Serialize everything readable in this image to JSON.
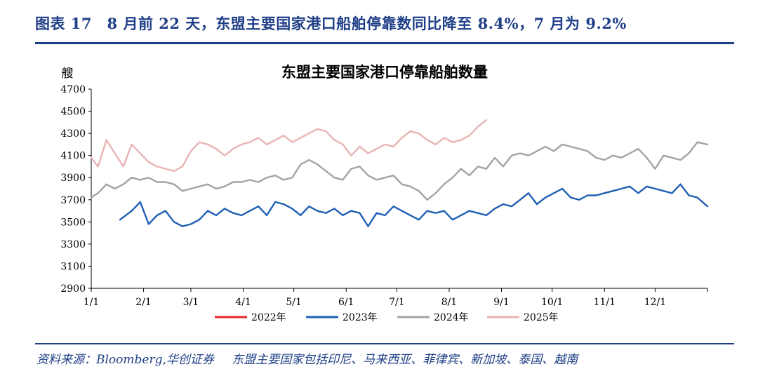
{
  "header": {
    "figure_title": "图表 17　8 月前 22 天，东盟主要国家港口船舶停靠数同比降至 8.4%，7 月为 9.2%"
  },
  "footer": {
    "source": "资料来源：Bloomberg,华创证券",
    "note": "东盟主要国家包括印尼、马来西亚、菲律宾、新加坡、泰国、越南"
  },
  "chart_data": {
    "type": "line",
    "title": "东盟主要国家港口停靠船舶数量",
    "ylabel": "艘",
    "xlabel": "",
    "ylim": [
      2900,
      4700
    ],
    "yticks": [
      "2900",
      "3100",
      "3300",
      "3500",
      "3700",
      "3900",
      "4100",
      "4300",
      "4500",
      "4700"
    ],
    "xlim_day": [
      1,
      366
    ],
    "xticks": [
      {
        "label": "1/1",
        "day": 1
      },
      {
        "label": "2/1",
        "day": 32
      },
      {
        "label": "3/1",
        "day": 60
      },
      {
        "label": "4/1",
        "day": 91
      },
      {
        "label": "5/1",
        "day": 121
      },
      {
        "label": "6/1",
        "day": 152
      },
      {
        "label": "7/1",
        "day": 182
      },
      {
        "label": "8/1",
        "day": 213
      },
      {
        "label": "9/1",
        "day": 244
      },
      {
        "label": "10/1",
        "day": 274
      },
      {
        "label": "11/1",
        "day": 305
      },
      {
        "label": "12/1",
        "day": 335
      }
    ],
    "grid": false,
    "legend_position": "bottom",
    "series": [
      {
        "name": "2022年",
        "color": "#e8262a",
        "x": [],
        "y": []
      },
      {
        "name": "2023年",
        "color": "#1f5fb4",
        "x": [
          18,
          25,
          30,
          35,
          40,
          45,
          50,
          55,
          60,
          65,
          70,
          75,
          80,
          85,
          90,
          95,
          100,
          105,
          110,
          115,
          120,
          125,
          130,
          135,
          140,
          145,
          150,
          155,
          160,
          165,
          170,
          175,
          180,
          185,
          190,
          195,
          200,
          205,
          210,
          215,
          220,
          225,
          230,
          235,
          240,
          245,
          250,
          255,
          260,
          265,
          270,
          275,
          280,
          285,
          290,
          295,
          300,
          305,
          310,
          315,
          320,
          325,
          330,
          335,
          340,
          345,
          350,
          355,
          360,
          366
        ],
        "y": [
          3520,
          3600,
          3680,
          3480,
          3560,
          3600,
          3500,
          3460,
          3480,
          3520,
          3600,
          3560,
          3620,
          3580,
          3560,
          3600,
          3640,
          3560,
          3680,
          3660,
          3620,
          3560,
          3640,
          3600,
          3580,
          3620,
          3560,
          3600,
          3580,
          3460,
          3580,
          3560,
          3640,
          3600,
          3560,
          3520,
          3600,
          3580,
          3600,
          3520,
          3560,
          3600,
          3580,
          3560,
          3620,
          3660,
          3640,
          3700,
          3760,
          3660,
          3720,
          3760,
          3800,
          3720,
          3700,
          3740,
          3740,
          3760,
          3780,
          3800,
          3820,
          3760,
          3820,
          3800,
          3780,
          3760,
          3840,
          3740,
          3720,
          3640
        ]
      },
      {
        "name": "2024年",
        "color": "#a3a3a3",
        "x": [
          1,
          5,
          10,
          15,
          20,
          25,
          30,
          35,
          40,
          45,
          50,
          55,
          60,
          65,
          70,
          75,
          80,
          85,
          90,
          95,
          100,
          105,
          110,
          115,
          120,
          125,
          130,
          135,
          140,
          145,
          150,
          155,
          160,
          165,
          170,
          175,
          180,
          185,
          190,
          195,
          200,
          205,
          210,
          215,
          220,
          225,
          230,
          235,
          240,
          245,
          250,
          255,
          260,
          265,
          270,
          275,
          280,
          285,
          290,
          295,
          300,
          305,
          310,
          315,
          320,
          325,
          330,
          335,
          340,
          345,
          350,
          355,
          360,
          366
        ],
        "y": [
          3720,
          3760,
          3840,
          3800,
          3840,
          3900,
          3880,
          3900,
          3860,
          3860,
          3840,
          3780,
          3800,
          3820,
          3840,
          3800,
          3820,
          3860,
          3860,
          3880,
          3860,
          3900,
          3920,
          3880,
          3900,
          4020,
          4060,
          4020,
          3960,
          3900,
          3880,
          3980,
          4000,
          3920,
          3880,
          3900,
          3920,
          3840,
          3820,
          3780,
          3700,
          3760,
          3840,
          3900,
          3980,
          3920,
          4000,
          3980,
          4080,
          4000,
          4100,
          4120,
          4100,
          4140,
          4180,
          4140,
          4200,
          4180,
          4160,
          4140,
          4080,
          4060,
          4100,
          4080,
          4120,
          4160,
          4080,
          3980,
          4100,
          4080,
          4060,
          4120,
          4220,
          4200
        ]
      },
      {
        "name": "2025年",
        "color": "#e8b4b4",
        "x": [
          1,
          5,
          10,
          15,
          20,
          25,
          30,
          35,
          40,
          45,
          50,
          55,
          60,
          65,
          70,
          75,
          80,
          85,
          90,
          95,
          100,
          105,
          110,
          115,
          120,
          125,
          130,
          135,
          140,
          145,
          150,
          155,
          160,
          165,
          170,
          175,
          180,
          185,
          190,
          195,
          200,
          205,
          210,
          215,
          220,
          225,
          230,
          235
        ],
        "y": [
          4080,
          4000,
          4240,
          4120,
          4000,
          4200,
          4120,
          4040,
          4000,
          3980,
          3960,
          4000,
          4140,
          4220,
          4200,
          4160,
          4100,
          4160,
          4200,
          4220,
          4260,
          4200,
          4240,
          4280,
          4220,
          4260,
          4300,
          4340,
          4320,
          4240,
          4200,
          4100,
          4180,
          4120,
          4160,
          4200,
          4180,
          4260,
          4320,
          4300,
          4240,
          4200,
          4260,
          4220,
          4240,
          4280,
          4360,
          4420
        ]
      }
    ]
  }
}
